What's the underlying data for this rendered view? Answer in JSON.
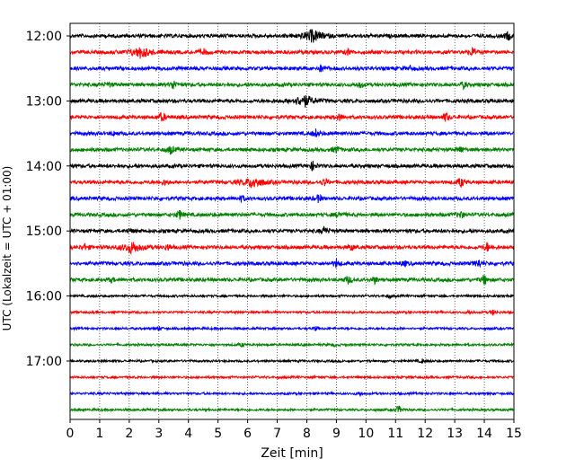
{
  "chart_data": {
    "type": "line",
    "title": "",
    "xlabel": "Zeit  [min]",
    "ylabel": "UTC (Lokalzeit = UTC + 01:00)",
    "xlim": [
      0,
      15
    ],
    "xticks": [
      0,
      1,
      2,
      3,
      4,
      5,
      6,
      7,
      8,
      9,
      10,
      11,
      12,
      13,
      14,
      15
    ],
    "xtick_labels": [
      "0",
      "1",
      "2",
      "3",
      "4",
      "5",
      "6",
      "7",
      "8",
      "9",
      "10",
      "11",
      "12",
      "13",
      "14",
      "15"
    ],
    "grid_x": true,
    "grid_style": "dotted",
    "color_cycle": [
      "#000000",
      "#ff0000",
      "#0000ff",
      "#008000"
    ],
    "ytick_labels": [
      "12:00",
      "13:00",
      "14:00",
      "15:00",
      "16:00",
      "17:00"
    ],
    "ytick_rows": [
      0,
      4,
      8,
      12,
      16,
      20
    ],
    "rows": [
      {
        "start": "12:00",
        "color": "#000000",
        "events": [
          [
            8.2,
            1.0
          ],
          [
            14.8,
            0.7
          ]
        ]
      },
      {
        "start": "12:15",
        "color": "#ff0000",
        "events": [
          [
            2.4,
            0.9
          ],
          [
            4.5,
            0.5
          ],
          [
            9.4,
            0.5
          ],
          [
            13.6,
            0.7
          ]
        ]
      },
      {
        "start": "12:30",
        "color": "#0000ff",
        "events": [
          [
            8.5,
            0.6
          ],
          [
            11.5,
            0.3
          ]
        ]
      },
      {
        "start": "12:45",
        "color": "#008000",
        "events": [
          [
            1.3,
            0.4
          ],
          [
            3.5,
            0.8
          ],
          [
            9.8,
            0.5
          ],
          [
            13.3,
            0.5
          ]
        ]
      },
      {
        "start": "13:00",
        "color": "#000000",
        "events": [
          [
            7.9,
            1.0
          ]
        ]
      },
      {
        "start": "13:15",
        "color": "#ff0000",
        "events": [
          [
            3.1,
            0.8
          ],
          [
            9.1,
            0.5
          ],
          [
            12.7,
            0.7
          ]
        ]
      },
      {
        "start": "13:30",
        "color": "#0000ff",
        "events": [
          [
            1.5,
            0.3
          ],
          [
            8.3,
            0.6
          ]
        ]
      },
      {
        "start": "13:45",
        "color": "#008000",
        "events": [
          [
            3.4,
            0.7
          ],
          [
            9.0,
            0.6
          ],
          [
            13.2,
            0.5
          ]
        ]
      },
      {
        "start": "14:00",
        "color": "#000000",
        "events": [
          [
            8.2,
            0.7
          ]
        ]
      },
      {
        "start": "14:15",
        "color": "#ff0000",
        "events": [
          [
            3.2,
            0.4
          ],
          [
            6.2,
            0.9
          ],
          [
            8.6,
            0.6
          ],
          [
            13.2,
            0.8
          ]
        ]
      },
      {
        "start": "14:30",
        "color": "#0000ff",
        "events": [
          [
            5.8,
            0.5
          ],
          [
            8.4,
            0.6
          ]
        ]
      },
      {
        "start": "14:45",
        "color": "#008000",
        "events": [
          [
            3.7,
            0.7
          ],
          [
            9.1,
            0.5
          ],
          [
            13.2,
            0.6
          ]
        ]
      },
      {
        "start": "15:00",
        "color": "#000000",
        "events": [
          [
            8.6,
            0.8
          ],
          [
            2.0,
            0.3
          ]
        ]
      },
      {
        "start": "15:15",
        "color": "#ff0000",
        "events": [
          [
            0.5,
            0.5
          ],
          [
            2.1,
            0.9
          ],
          [
            3.3,
            0.5
          ],
          [
            9.5,
            0.5
          ],
          [
            14.1,
            0.7
          ]
        ]
      },
      {
        "start": "15:30",
        "color": "#0000ff",
        "events": [
          [
            9.0,
            0.6
          ],
          [
            11.3,
            0.4
          ],
          [
            13.8,
            0.7
          ]
        ]
      },
      {
        "start": "15:45",
        "color": "#008000",
        "events": [
          [
            1.4,
            0.3
          ],
          [
            9.4,
            0.6
          ],
          [
            10.3,
            0.5
          ],
          [
            14.0,
            0.8
          ]
        ]
      },
      {
        "start": "16:00",
        "color": "#000000",
        "events": [
          [
            10.8,
            0.3
          ]
        ]
      },
      {
        "start": "16:15",
        "color": "#ff0000",
        "events": [
          [
            13.5,
            0.3
          ],
          [
            14.3,
            0.4
          ]
        ]
      },
      {
        "start": "16:30",
        "color": "#0000ff",
        "events": [
          [
            3.0,
            0.3
          ],
          [
            8.3,
            0.3
          ]
        ]
      },
      {
        "start": "16:45",
        "color": "#008000",
        "events": [
          [
            5.8,
            0.3
          ],
          [
            8.9,
            0.2
          ]
        ]
      },
      {
        "start": "17:00",
        "color": "#000000",
        "events": [
          [
            11.9,
            0.3
          ]
        ]
      },
      {
        "start": "17:15",
        "color": "#ff0000",
        "events": []
      },
      {
        "start": "17:30",
        "color": "#0000ff",
        "events": [
          [
            9.8,
            0.4
          ]
        ]
      },
      {
        "start": "17:45",
        "color": "#008000",
        "events": [
          [
            11.1,
            0.6
          ]
        ]
      }
    ]
  }
}
